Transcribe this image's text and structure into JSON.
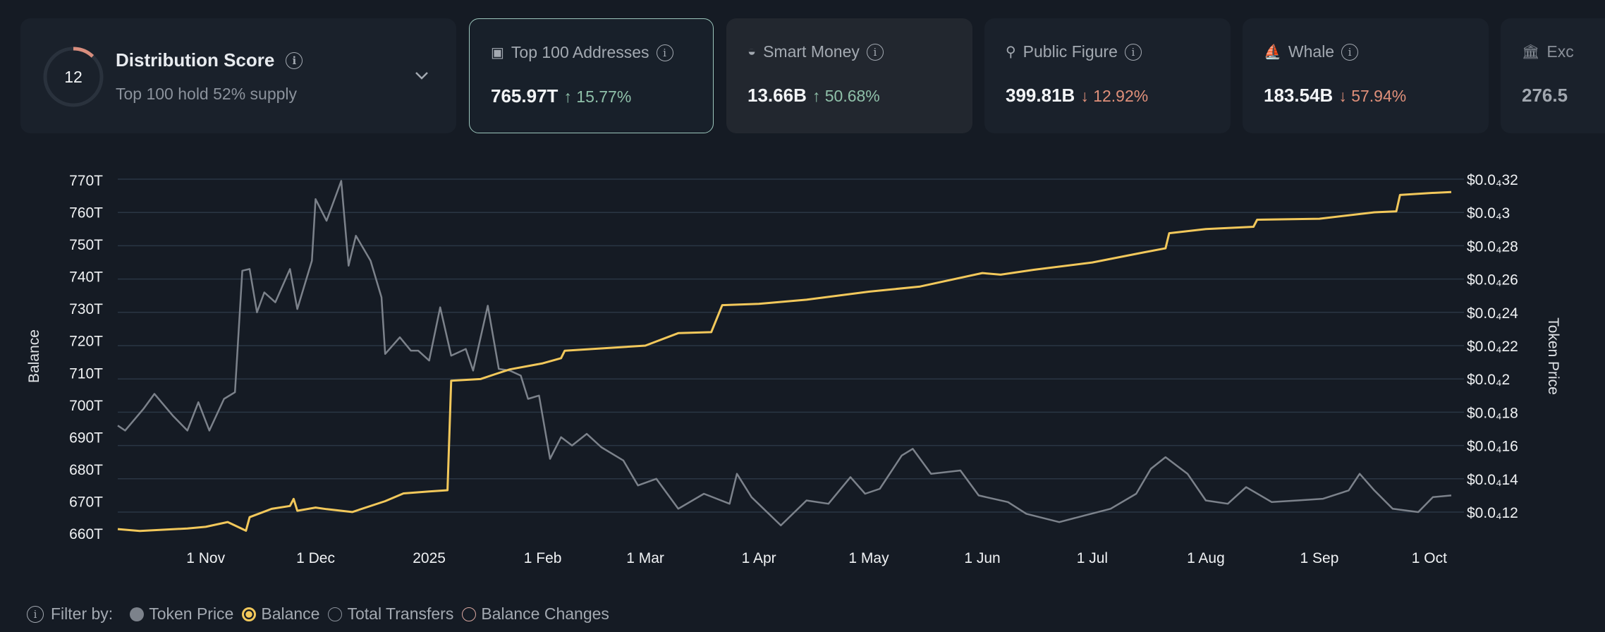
{
  "summary": {
    "score": "12",
    "score_fraction": 0.12,
    "title": "Distribution Score",
    "subtitle": "Top 100 hold 52% supply",
    "ring_color": "#d98e7e"
  },
  "cards": [
    {
      "label": "Top 100 Addresses",
      "icon": "wallet-icon",
      "value": "765.97T",
      "change": "15.77%",
      "direction": "up",
      "selected": true
    },
    {
      "label": "Smart Money",
      "icon": "sunglasses-icon",
      "value": "13.66B",
      "change": "50.68%",
      "direction": "up"
    },
    {
      "label": "Public Figure",
      "icon": "person-icon",
      "value": "399.81B",
      "change": "12.92%",
      "direction": "down"
    },
    {
      "label": "Whale",
      "icon": "whale-icon",
      "value": "183.54B",
      "change": "57.94%",
      "direction": "down"
    },
    {
      "label": "Exc",
      "icon": "bank-icon",
      "value": "276.5",
      "truncated": true
    }
  ],
  "colors": {
    "up": "#8fc0a9",
    "down": "#e0907a",
    "balance": "#f2c85b",
    "price": "#7c828b"
  },
  "filter": {
    "label": "Filter by:",
    "options": [
      {
        "label": "Token Price",
        "state": "filled",
        "color": "#7c828b"
      },
      {
        "label": "Balance",
        "state": "selected",
        "color": "#f2c85b"
      },
      {
        "label": "Total Transfers",
        "state": "empty",
        "color": "#8b929c"
      },
      {
        "label": "Balance Changes",
        "state": "empty",
        "color": "#d9a7a0"
      }
    ]
  },
  "chart_data": {
    "type": "line",
    "ylabel_left": "Balance",
    "ylabel_right": "Token Price",
    "ylim_left": [
      660,
      770
    ],
    "ylim_right": [
      1.2e-05,
      3.2e-05
    ],
    "left_ticks": [
      "770T",
      "760T",
      "750T",
      "740T",
      "730T",
      "720T",
      "710T",
      "700T",
      "690T",
      "680T",
      "670T",
      "660T"
    ],
    "right_ticks": [
      "$0.0₄32",
      "$0.0₄3",
      "$0.0₄28",
      "$0.0₄26",
      "$0.0₄24",
      "$0.0₄22",
      "$0.0₄2",
      "$0.0₄18",
      "$0.0₄16",
      "$0.0₄14",
      "$0.0₄12"
    ],
    "x_ticks": [
      {
        "label": "1 Nov",
        "date": "2024-11-01"
      },
      {
        "label": "1 Dec",
        "date": "2024-12-01"
      },
      {
        "label": "2025",
        "date": "2025-01-01"
      },
      {
        "label": "1 Feb",
        "date": "2025-02-01"
      },
      {
        "label": "1 Mar",
        "date": "2025-03-01"
      },
      {
        "label": "1 Apr",
        "date": "2025-04-01"
      },
      {
        "label": "1 May",
        "date": "2025-05-01"
      },
      {
        "label": "1 Jun",
        "date": "2025-06-01"
      },
      {
        "label": "1 Jul",
        "date": "2025-07-01"
      },
      {
        "label": "1 Aug",
        "date": "2025-08-01"
      },
      {
        "label": "1 Sep",
        "date": "2025-09-01"
      },
      {
        "label": "1 Oct",
        "date": "2025-10-01"
      }
    ],
    "xlim": [
      "2024-10-08",
      "2025-10-07"
    ],
    "grid": true,
    "series": [
      {
        "name": "Balance",
        "axis": "left",
        "unit": "T",
        "color": "#f2c85b",
        "points": [
          [
            "2024-10-08",
            661.3
          ],
          [
            "2024-10-14",
            660.7
          ],
          [
            "2024-10-27",
            661.5
          ],
          [
            "2024-11-01",
            662
          ],
          [
            "2024-11-07",
            663.5
          ],
          [
            "2024-11-12",
            660.8
          ],
          [
            "2024-11-13",
            665
          ],
          [
            "2024-11-19",
            667.6
          ],
          [
            "2024-11-24",
            668.5
          ],
          [
            "2024-11-25",
            670.7
          ],
          [
            "2024-11-26",
            667
          ],
          [
            "2024-12-01",
            668
          ],
          [
            "2024-12-04",
            667.5
          ],
          [
            "2024-12-11",
            666.6
          ],
          [
            "2024-12-20",
            670
          ],
          [
            "2024-12-25",
            672.4
          ],
          [
            "2025-01-01",
            673
          ],
          [
            "2025-01-06",
            673.4
          ],
          [
            "2025-01-07",
            707.5
          ],
          [
            "2025-01-15",
            708
          ],
          [
            "2025-01-19",
            709.5
          ],
          [
            "2025-01-23",
            711
          ],
          [
            "2025-02-01",
            712.9
          ],
          [
            "2025-02-06",
            714.5
          ],
          [
            "2025-02-07",
            716.8
          ],
          [
            "2025-03-01",
            718.4
          ],
          [
            "2025-03-10",
            722.3
          ],
          [
            "2025-03-19",
            722.6
          ],
          [
            "2025-03-22",
            731
          ],
          [
            "2025-04-01",
            731.4
          ],
          [
            "2025-04-14",
            732.7
          ],
          [
            "2025-05-01",
            735.2
          ],
          [
            "2025-05-15",
            736.8
          ],
          [
            "2025-06-01",
            741
          ],
          [
            "2025-06-06",
            740.5
          ],
          [
            "2025-06-15",
            742
          ],
          [
            "2025-07-01",
            744.3
          ],
          [
            "2025-07-15",
            747.4
          ],
          [
            "2025-07-21",
            748.7
          ],
          [
            "2025-07-22",
            753.4
          ],
          [
            "2025-08-01",
            754.7
          ],
          [
            "2025-08-14",
            755.4
          ],
          [
            "2025-08-15",
            757.6
          ],
          [
            "2025-09-01",
            757.9
          ],
          [
            "2025-09-16",
            759.9
          ],
          [
            "2025-09-22",
            760.2
          ],
          [
            "2025-09-23",
            765.3
          ],
          [
            "2025-10-01",
            765.9
          ],
          [
            "2025-10-07",
            766.2
          ]
        ]
      },
      {
        "name": "Token Price",
        "axis": "right",
        "color": "#7c828b",
        "points": [
          [
            "2024-10-08",
            1.72e-05
          ],
          [
            "2024-10-10",
            1.69e-05
          ],
          [
            "2024-10-15",
            1.82e-05
          ],
          [
            "2024-10-18",
            1.91e-05
          ],
          [
            "2024-10-23",
            1.78e-05
          ],
          [
            "2024-10-27",
            1.69e-05
          ],
          [
            "2024-10-30",
            1.86e-05
          ],
          [
            "2024-11-02",
            1.69e-05
          ],
          [
            "2024-11-06",
            1.88e-05
          ],
          [
            "2024-11-09",
            1.92e-05
          ],
          [
            "2024-11-11",
            2.65e-05
          ],
          [
            "2024-11-13",
            2.66e-05
          ],
          [
            "2024-11-15",
            2.4e-05
          ],
          [
            "2024-11-17",
            2.52e-05
          ],
          [
            "2024-11-20",
            2.46e-05
          ],
          [
            "2024-11-24",
            2.66e-05
          ],
          [
            "2024-11-26",
            2.42e-05
          ],
          [
            "2024-11-30",
            2.71e-05
          ],
          [
            "2024-12-01",
            3.08e-05
          ],
          [
            "2024-12-04",
            2.95e-05
          ],
          [
            "2024-12-08",
            3.19e-05
          ],
          [
            "2024-12-10",
            2.68e-05
          ],
          [
            "2024-12-12",
            2.86e-05
          ],
          [
            "2024-12-16",
            2.71e-05
          ],
          [
            "2024-12-19",
            2.49e-05
          ],
          [
            "2024-12-20",
            2.15e-05
          ],
          [
            "2024-12-24",
            2.25e-05
          ],
          [
            "2024-12-27",
            2.17e-05
          ],
          [
            "2024-12-29",
            2.17e-05
          ],
          [
            "2025-01-01",
            2.11e-05
          ],
          [
            "2025-01-04",
            2.43e-05
          ],
          [
            "2025-01-07",
            2.14e-05
          ],
          [
            "2025-01-11",
            2.18e-05
          ],
          [
            "2025-01-13",
            2.05e-05
          ],
          [
            "2025-01-17",
            2.44e-05
          ],
          [
            "2025-01-20",
            2.06e-05
          ],
          [
            "2025-01-23",
            2.05e-05
          ],
          [
            "2025-01-26",
            2.02e-05
          ],
          [
            "2025-01-28",
            1.88e-05
          ],
          [
            "2025-01-31",
            1.9e-05
          ],
          [
            "2025-02-03",
            1.52e-05
          ],
          [
            "2025-02-06",
            1.65e-05
          ],
          [
            "2025-02-09",
            1.6e-05
          ],
          [
            "2025-02-13",
            1.67e-05
          ],
          [
            "2025-02-17",
            1.59e-05
          ],
          [
            "2025-02-23",
            1.51e-05
          ],
          [
            "2025-02-27",
            1.36e-05
          ],
          [
            "2025-03-04",
            1.4e-05
          ],
          [
            "2025-03-10",
            1.22e-05
          ],
          [
            "2025-03-17",
            1.31e-05
          ],
          [
            "2025-03-24",
            1.25e-05
          ],
          [
            "2025-03-26",
            1.43e-05
          ],
          [
            "2025-03-30",
            1.29e-05
          ],
          [
            "2025-04-07",
            1.12e-05
          ],
          [
            "2025-04-14",
            1.27e-05
          ],
          [
            "2025-04-20",
            1.25e-05
          ],
          [
            "2025-04-26",
            1.41e-05
          ],
          [
            "2025-04-30",
            1.31e-05
          ],
          [
            "2025-05-04",
            1.34e-05
          ],
          [
            "2025-05-10",
            1.54e-05
          ],
          [
            "2025-05-13",
            1.58e-05
          ],
          [
            "2025-05-18",
            1.43e-05
          ],
          [
            "2025-05-26",
            1.45e-05
          ],
          [
            "2025-05-31",
            1.3e-05
          ],
          [
            "2025-06-08",
            1.26e-05
          ],
          [
            "2025-06-13",
            1.19e-05
          ],
          [
            "2025-06-22",
            1.14e-05
          ],
          [
            "2025-06-29",
            1.18e-05
          ],
          [
            "2025-07-06",
            1.22e-05
          ],
          [
            "2025-07-13",
            1.31e-05
          ],
          [
            "2025-07-17",
            1.46e-05
          ],
          [
            "2025-07-21",
            1.53e-05
          ],
          [
            "2025-07-27",
            1.43e-05
          ],
          [
            "2025-08-01",
            1.27e-05
          ],
          [
            "2025-08-07",
            1.25e-05
          ],
          [
            "2025-08-12",
            1.35e-05
          ],
          [
            "2025-08-19",
            1.26e-05
          ],
          [
            "2025-08-26",
            1.27e-05
          ],
          [
            "2025-09-02",
            1.28e-05
          ],
          [
            "2025-09-09",
            1.33e-05
          ],
          [
            "2025-09-12",
            1.43e-05
          ],
          [
            "2025-09-16",
            1.33e-05
          ],
          [
            "2025-09-21",
            1.22e-05
          ],
          [
            "2025-09-28",
            1.2e-05
          ],
          [
            "2025-10-02",
            1.29e-05
          ],
          [
            "2025-10-07",
            1.3e-05
          ]
        ]
      }
    ]
  }
}
